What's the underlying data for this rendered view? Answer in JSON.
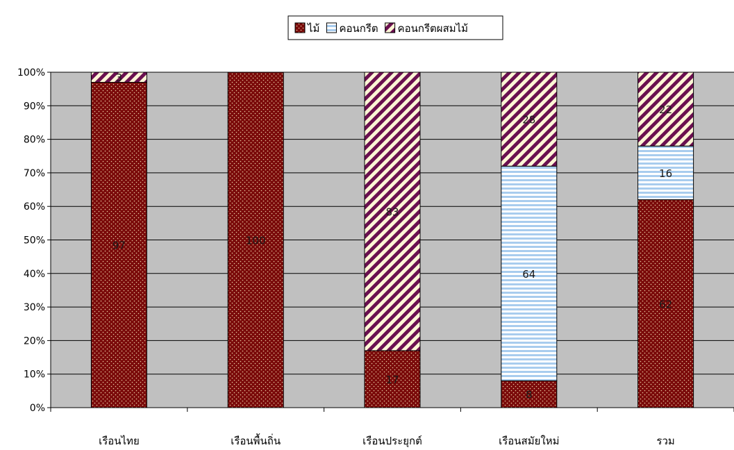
{
  "chart_data": {
    "type": "bar",
    "stacked": "percent",
    "categories": [
      "เรือนไทย",
      "เรือนพื้นถิ่น",
      "เรือนประยุกต์",
      "เรือนสมัยใหม่",
      "รวม"
    ],
    "series": [
      {
        "name": "ไม้",
        "values": [
          97,
          100,
          17,
          8,
          62
        ],
        "labels": [
          "97",
          "100",
          "17",
          "8",
          "62"
        ],
        "color": "#7a0a0a"
      },
      {
        "name": "คอนกรีต",
        "values": [
          0,
          0,
          0,
          64,
          16
        ],
        "labels": [
          "",
          "",
          "",
          "64",
          "16"
        ],
        "color": "#d6e8f8"
      },
      {
        "name": "คอนกรีตผสมไม้",
        "values": [
          3,
          0,
          83,
          28,
          22
        ],
        "labels": [
          "3",
          "",
          "83",
          "28",
          "22"
        ],
        "color": "#6a1050"
      }
    ],
    "y_ticks": [
      "0%",
      "10%",
      "20%",
      "30%",
      "40%",
      "50%",
      "60%",
      "70%",
      "80%",
      "90%",
      "100%"
    ],
    "ylim": [
      0,
      100
    ],
    "grid": true,
    "legend_position": "top-center",
    "plot_background": "#c0c0c0"
  }
}
